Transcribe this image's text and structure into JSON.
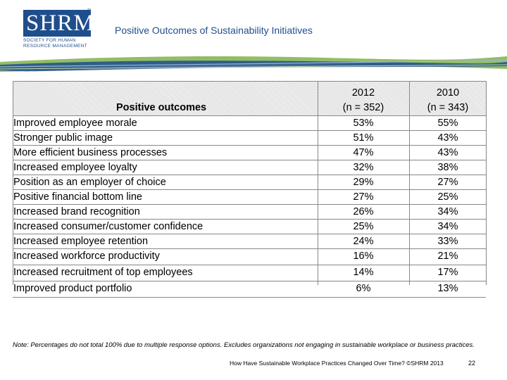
{
  "logo": {
    "wordmark": "SHRM",
    "registered": "®",
    "subtitle_line1": "SOCIETY FOR HUMAN",
    "subtitle_line2": "RESOURCE MANAGEMENT"
  },
  "slide": {
    "title": "Positive Outcomes of Sustainability Initiatives"
  },
  "table": {
    "headers": {
      "label": "Positive outcomes",
      "col_2012_year": "2012",
      "col_2012_n": "(n = 352)",
      "col_2010_year": "2010",
      "col_2010_n": "(n = 343)"
    },
    "rows": [
      {
        "label": "Improved employee morale",
        "y2012": "53%",
        "y2010": "55%"
      },
      {
        "label": "Stronger public image",
        "y2012": "51%",
        "y2010": "43%"
      },
      {
        "label": "More efficient business processes",
        "y2012": "47%",
        "y2010": "43%"
      },
      {
        "label": "Increased employee loyalty",
        "y2012": "32%",
        "y2010": "38%"
      },
      {
        "label": "Position as an employer of choice",
        "y2012": "29%",
        "y2010": "27%"
      },
      {
        "label": "Positive financial bottom line",
        "y2012": "27%",
        "y2010": "25%"
      },
      {
        "label": "Increased brand recognition",
        "y2012": "26%",
        "y2010": "34%"
      },
      {
        "label": "Increased consumer/customer confidence",
        "y2012": "25%",
        "y2010": "34%"
      },
      {
        "label": "Increased employee retention",
        "y2012": "24%",
        "y2010": "33%"
      },
      {
        "label": "Increased workforce productivity",
        "y2012": "16%",
        "y2010": "21%"
      },
      {
        "label": "Increased recruitment of top employees",
        "y2012": "14%",
        "y2010": "17%"
      },
      {
        "label": "Improved product portfolio",
        "y2012": "6%",
        "y2010": "13%"
      }
    ]
  },
  "note": "Note: Percentages do not total 100% due to multiple response options. Excludes organizations not engaging in sustainable workplace or business practices.",
  "footer": {
    "source": "How Have Sustainable Workplace Practices Changed Over Time? ©SHRM 2013",
    "page": "22"
  },
  "colors": {
    "brand_blue": "#1f4e8c",
    "banner_green": "#7fb24a"
  }
}
